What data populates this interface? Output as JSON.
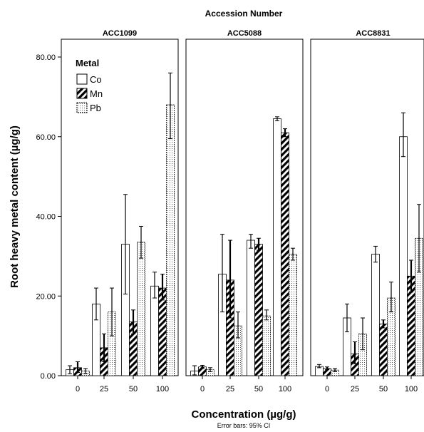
{
  "chart_data": {
    "type": "bar",
    "title": "Accession Number",
    "xlabel": "Concentration (µg/g)",
    "ylabel": "Root heavy metal content (µg/g)",
    "note": "Error bars: 95% CI",
    "ylim": [
      0,
      80
    ],
    "y_ticks": [
      "0.00",
      "20.00",
      "40.00",
      "60.00",
      "80.00"
    ],
    "categories": [
      "0",
      "25",
      "50",
      "100"
    ],
    "legend": {
      "title": "Metal",
      "position": "top-left",
      "entries": [
        {
          "name": "Co",
          "pattern": "open"
        },
        {
          "name": "Mn",
          "pattern": "diagonal-hatch"
        },
        {
          "name": "Pb",
          "pattern": "dotted"
        }
      ]
    },
    "panels": [
      {
        "name": "ACC1099",
        "series": [
          {
            "name": "Co",
            "values": [
              1.5,
              18.0,
              33.0,
              22.5
            ],
            "ci_low": [
              0.5,
              14.0,
              20.5,
              19.5
            ],
            "ci_high": [
              2.5,
              22.0,
              45.5,
              26.0
            ]
          },
          {
            "name": "Mn",
            "values": [
              2.0,
              7.0,
              13.5,
              22.0
            ],
            "ci_low": [
              0.8,
              3.5,
              10.5,
              19.0
            ],
            "ci_high": [
              3.5,
              10.5,
              16.5,
              25.5
            ]
          },
          {
            "name": "Pb",
            "values": [
              1.2,
              16.0,
              33.5,
              68.0
            ],
            "ci_low": [
              0.5,
              10.0,
              29.5,
              59.5
            ],
            "ci_high": [
              1.8,
              22.0,
              37.5,
              76.0
            ]
          }
        ]
      },
      {
        "name": "ACC5088",
        "series": [
          {
            "name": "Co",
            "values": [
              1.2,
              25.5,
              34.0,
              64.5
            ],
            "ci_low": [
              0.2,
              16.0,
              32.0,
              64.0
            ],
            "ci_high": [
              2.5,
              35.5,
              35.5,
              65.0
            ]
          },
          {
            "name": "Mn",
            "values": [
              2.2,
              24.0,
              33.0,
              61.0
            ],
            "ci_low": [
              1.8,
              14.5,
              31.5,
              60.0
            ],
            "ci_high": [
              2.6,
              34.0,
              34.5,
              62.0
            ]
          },
          {
            "name": "Pb",
            "values": [
              1.5,
              12.5,
              15.0,
              30.5
            ],
            "ci_low": [
              1.0,
              9.5,
              14.0,
              29.0
            ],
            "ci_high": [
              2.0,
              16.0,
              16.5,
              32.0
            ]
          }
        ]
      },
      {
        "name": "ACC8831",
        "series": [
          {
            "name": "Co",
            "values": [
              2.3,
              14.5,
              30.5,
              60.0
            ],
            "ci_low": [
              2.0,
              11.0,
              28.5,
              55.0
            ],
            "ci_high": [
              2.8,
              18.0,
              32.5,
              66.0
            ]
          },
          {
            "name": "Mn",
            "values": [
              1.8,
              5.5,
              13.0,
              25.0
            ],
            "ci_low": [
              1.5,
              3.0,
              12.0,
              21.0
            ],
            "ci_high": [
              2.2,
              8.5,
              14.0,
              29.0
            ]
          },
          {
            "name": "Pb",
            "values": [
              1.4,
              10.5,
              19.5,
              34.5
            ],
            "ci_low": [
              1.0,
              6.5,
              16.0,
              26.0
            ],
            "ci_high": [
              1.8,
              14.5,
              23.5,
              43.0
            ]
          }
        ]
      }
    ]
  }
}
